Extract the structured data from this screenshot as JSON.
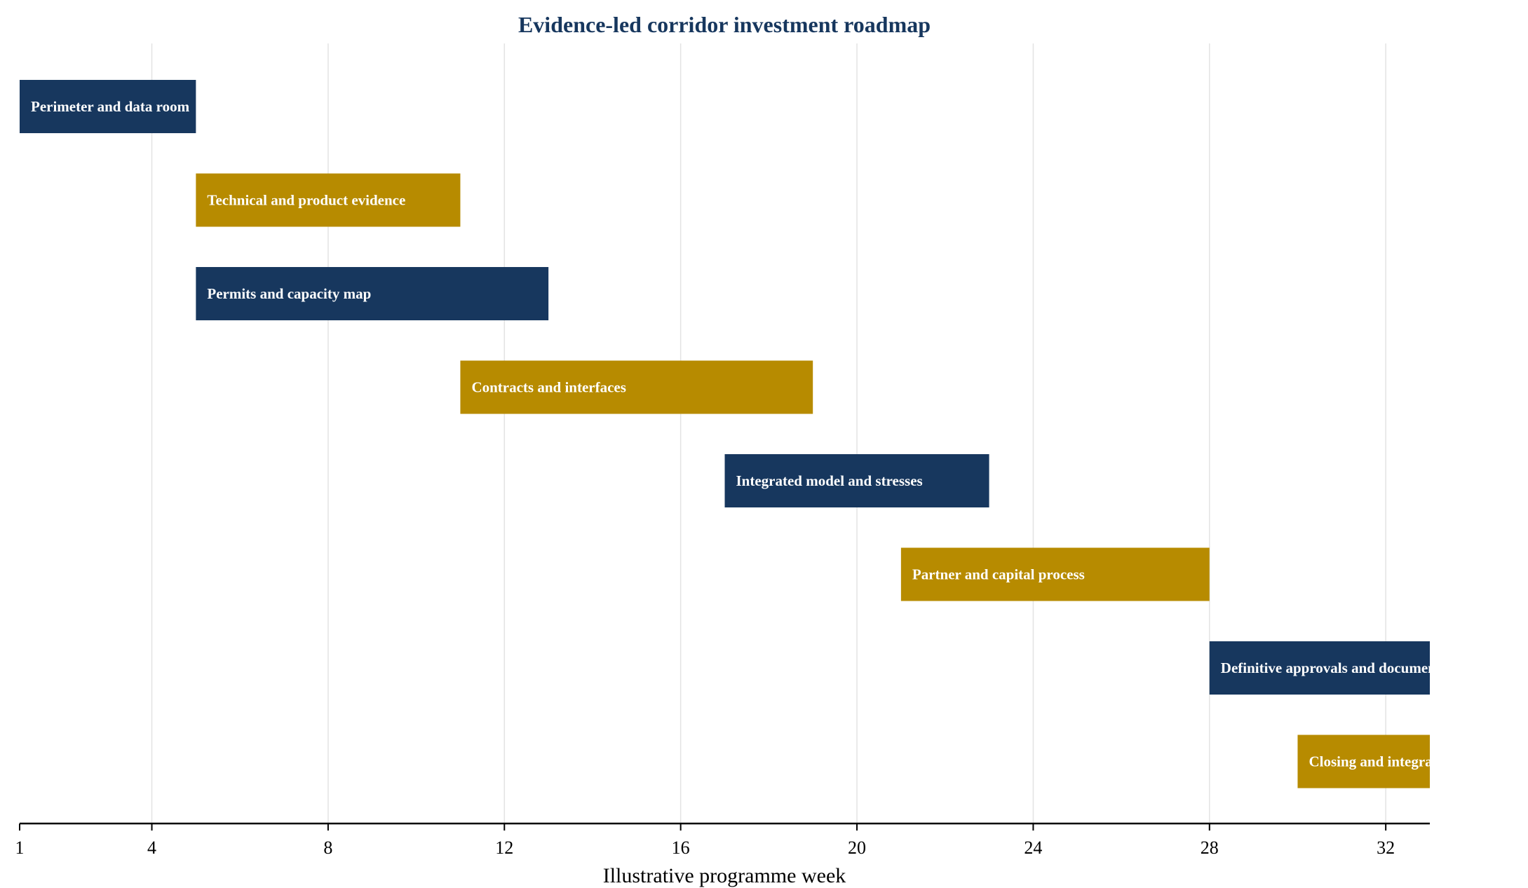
{
  "chart_data": {
    "type": "bar",
    "orientation": "horizontal-gantt",
    "title": "Evidence-led corridor investment roadmap",
    "xlabel": "Illustrative programme week",
    "ylabel": "",
    "xlim": [
      1,
      33
    ],
    "xticks": [
      1,
      4,
      8,
      12,
      16,
      20,
      24,
      28,
      32
    ],
    "grid": "vertical",
    "colors": {
      "navy": "#17375e",
      "gold": "#b78b00"
    },
    "tasks": [
      {
        "name": "Perimeter and data room",
        "start": 1,
        "end": 5,
        "color": "#17375e"
      },
      {
        "name": "Technical and product evidence",
        "start": 5,
        "end": 11,
        "color": "#b78b00"
      },
      {
        "name": "Permits and capacity map",
        "start": 5,
        "end": 13,
        "color": "#17375e"
      },
      {
        "name": "Contracts and interfaces",
        "start": 11,
        "end": 19,
        "color": "#b78b00"
      },
      {
        "name": "Integrated model and stresses",
        "start": 17,
        "end": 23,
        "color": "#17375e"
      },
      {
        "name": "Partner and capital process",
        "start": 21,
        "end": 28,
        "color": "#b78b00"
      },
      {
        "name": "Definitive approvals and documentation",
        "start": 28,
        "end": 33,
        "color": "#17375e"
      },
      {
        "name": "Closing and integration",
        "start": 30,
        "end": 33,
        "color": "#b78b00"
      }
    ]
  }
}
